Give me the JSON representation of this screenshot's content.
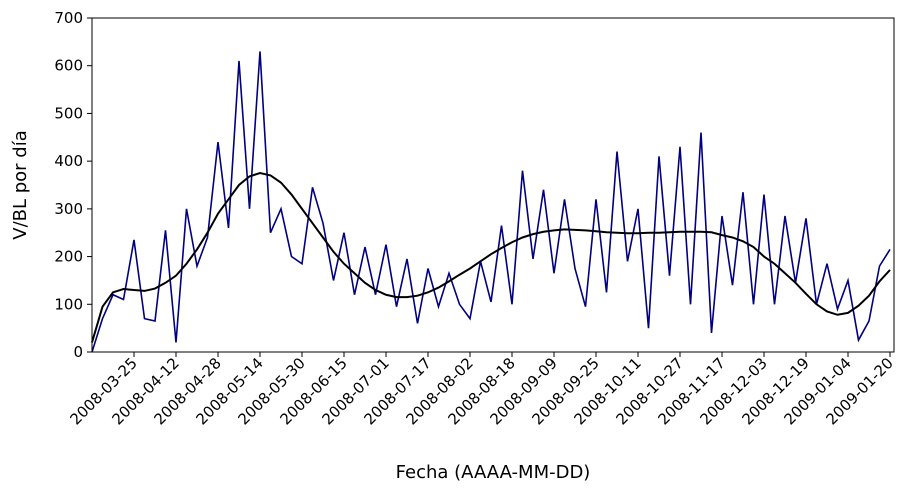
{
  "chart_data": {
    "type": "line",
    "x_label": "Fecha (AAAA-MM-DD)",
    "y_label": "V/BL por día",
    "categories": [
      null,
      null,
      null,
      null,
      "2008-03-25",
      null,
      null,
      null,
      "2008-04-12",
      null,
      null,
      null,
      "2008-04-28",
      null,
      null,
      null,
      "2008-05-14",
      null,
      null,
      null,
      "2008-05-30",
      null,
      null,
      null,
      "2008-06-15",
      null,
      null,
      null,
      "2008-07-01",
      null,
      null,
      null,
      "2008-07-17",
      null,
      null,
      null,
      "2008-08-02",
      null,
      null,
      null,
      "2008-08-18",
      null,
      null,
      null,
      "2008-09-09",
      null,
      null,
      null,
      "2008-09-25",
      null,
      null,
      null,
      "2008-10-11",
      null,
      null,
      null,
      "2008-10-27",
      null,
      null,
      null,
      "2008-11-17",
      null,
      null,
      null,
      "2008-12-03",
      null,
      null,
      null,
      "2008-12-19",
      null,
      null,
      null,
      "2009-01-04",
      null,
      null,
      null,
      "2009-01-20"
    ],
    "series": [
      {
        "color": "#000080",
        "values": [
          0,
          70,
          120,
          110,
          235,
          70,
          65,
          255,
          20,
          300,
          180,
          240,
          440,
          260,
          610,
          300,
          630,
          250,
          300,
          200,
          185,
          345,
          270,
          150,
          250,
          120,
          220,
          120,
          225,
          95,
          195,
          60,
          175,
          95,
          165,
          100,
          70,
          190,
          105,
          265,
          100,
          380,
          195,
          340,
          165,
          320,
          175,
          95,
          320,
          125,
          420,
          190,
          300,
          50,
          410,
          160,
          430,
          100,
          460,
          40,
          285,
          140,
          335,
          100,
          330,
          100,
          285,
          145,
          280,
          100,
          185,
          90,
          150,
          25,
          65,
          180,
          215
        ]
      },
      {
        "color": "#000000",
        "values": [
          20,
          95,
          125,
          132,
          130,
          128,
          133,
          145,
          160,
          185,
          215,
          250,
          290,
          320,
          350,
          368,
          375,
          370,
          355,
          330,
          300,
          270,
          240,
          210,
          185,
          165,
          145,
          130,
          120,
          115,
          115,
          118,
          125,
          135,
          148,
          162,
          175,
          190,
          205,
          218,
          230,
          240,
          247,
          252,
          255,
          257,
          256,
          255,
          253,
          251,
          250,
          249,
          249,
          250,
          250,
          251,
          252,
          252,
          252,
          251,
          245,
          240,
          232,
          220,
          200,
          185,
          165,
          145,
          122,
          100,
          85,
          78,
          82,
          97,
          118,
          148,
          172
        ]
      }
    ],
    "ylim": [
      0,
      700
    ],
    "yticks": [
      0,
      100,
      200,
      300,
      400,
      500,
      600,
      700
    ]
  }
}
